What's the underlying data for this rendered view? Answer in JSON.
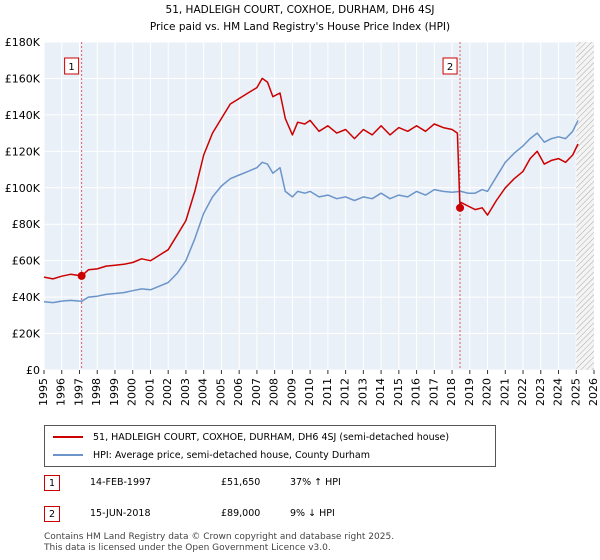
{
  "chart_data": {
    "type": "line",
    "title": "51, HADLEIGH COURT, COXHOE, DURHAM, DH6 4SJ",
    "subtitle": "Price paid vs. HM Land Registry's House Price Index (HPI)",
    "xlim": [
      1995,
      2026
    ],
    "ylim": [
      0,
      180000
    ],
    "x_ticks": [
      "1995",
      "1996",
      "1997",
      "1998",
      "1999",
      "2000",
      "2001",
      "2002",
      "2003",
      "2004",
      "2005",
      "2006",
      "2007",
      "2008",
      "2009",
      "2010",
      "2011",
      "2012",
      "2013",
      "2014",
      "2015",
      "2016",
      "2017",
      "2018",
      "2019",
      "2020",
      "2021",
      "2022",
      "2023",
      "2024",
      "2025",
      "2026"
    ],
    "y_ticks": [
      {
        "value": 0,
        "label": "£0"
      },
      {
        "value": 20000,
        "label": "£20K"
      },
      {
        "value": 40000,
        "label": "£40K"
      },
      {
        "value": 60000,
        "label": "£60K"
      },
      {
        "value": 80000,
        "label": "£80K"
      },
      {
        "value": 100000,
        "label": "£100K"
      },
      {
        "value": 120000,
        "label": "£120K"
      },
      {
        "value": 140000,
        "label": "£140K"
      },
      {
        "value": 160000,
        "label": "£160K"
      },
      {
        "value": 180000,
        "label": "£180K"
      }
    ],
    "grid": true,
    "forecast_from": 2025.0,
    "series": [
      {
        "name": "51, HADLEIGH COURT, COXHOE, DURHAM, DH6 4SJ (semi-detached house)",
        "color": "#cc0000",
        "x": [
          1995.0,
          1995.5,
          1996.0,
          1996.5,
          1997.12,
          1997.5,
          1998.0,
          1998.5,
          1999.0,
          1999.5,
          2000.0,
          2000.5,
          2001.0,
          2001.5,
          2002.0,
          2002.5,
          2003.0,
          2003.5,
          2004.0,
          2004.5,
          2005.0,
          2005.5,
          2006.0,
          2006.5,
          2007.0,
          2007.3,
          2007.6,
          2007.9,
          2008.3,
          2008.6,
          2009.0,
          2009.3,
          2009.7,
          2010.0,
          2010.5,
          2011.0,
          2011.5,
          2012.0,
          2012.5,
          2013.0,
          2013.5,
          2014.0,
          2014.5,
          2015.0,
          2015.5,
          2016.0,
          2016.5,
          2017.0,
          2017.5,
          2018.0,
          2018.3,
          2018.45,
          2018.5,
          2018.9,
          2019.3,
          2019.7,
          2020.0,
          2020.5,
          2021.0,
          2021.5,
          2022.0,
          2022.4,
          2022.8,
          2023.2,
          2023.6,
          2024.0,
          2024.4,
          2024.8,
          2025.1
        ],
        "y": [
          51000,
          50000,
          51500,
          52500,
          51650,
          55000,
          55500,
          57000,
          57500,
          58000,
          59000,
          61000,
          60000,
          63000,
          66000,
          74000,
          82000,
          98000,
          118000,
          130000,
          138000,
          146000,
          149000,
          152000,
          155000,
          160000,
          158000,
          150000,
          152000,
          138000,
          129000,
          136000,
          135000,
          137000,
          131000,
          134000,
          130000,
          132000,
          127000,
          132000,
          129000,
          134000,
          129000,
          133000,
          131000,
          134000,
          131000,
          135000,
          133000,
          132000,
          130000,
          89000,
          92000,
          90000,
          88000,
          89000,
          85000,
          93000,
          100000,
          105000,
          109000,
          116000,
          120000,
          113000,
          115000,
          116000,
          114000,
          118000,
          124000
        ]
      },
      {
        "name": "HPI: Average price, semi-detached house, County Durham",
        "color": "#6b95c9",
        "x": [
          1995.0,
          1995.5,
          1996.0,
          1996.5,
          1997.12,
          1997.5,
          1998.0,
          1998.5,
          1999.0,
          1999.5,
          2000.0,
          2000.5,
          2001.0,
          2001.5,
          2002.0,
          2002.5,
          2003.0,
          2003.5,
          2004.0,
          2004.5,
          2005.0,
          2005.5,
          2006.0,
          2006.5,
          2007.0,
          2007.3,
          2007.6,
          2007.9,
          2008.3,
          2008.6,
          2009.0,
          2009.3,
          2009.7,
          2010.0,
          2010.5,
          2011.0,
          2011.5,
          2012.0,
          2012.5,
          2013.0,
          2013.5,
          2014.0,
          2014.5,
          2015.0,
          2015.5,
          2016.0,
          2016.5,
          2017.0,
          2017.5,
          2018.0,
          2018.5,
          2018.9,
          2019.3,
          2019.7,
          2020.0,
          2020.5,
          2021.0,
          2021.5,
          2022.0,
          2022.4,
          2022.8,
          2023.2,
          2023.6,
          2024.0,
          2024.4,
          2024.8,
          2025.1
        ],
        "y": [
          37500,
          37000,
          37800,
          38200,
          37700,
          40000,
          40500,
          41500,
          42000,
          42500,
          43500,
          44500,
          44000,
          46000,
          48000,
          53000,
          60000,
          72000,
          86000,
          95000,
          101000,
          105000,
          107000,
          109000,
          111000,
          114000,
          113000,
          108000,
          111000,
          98000,
          95000,
          98000,
          97000,
          98000,
          95000,
          96000,
          94000,
          95000,
          93000,
          95000,
          94000,
          97000,
          94000,
          96000,
          95000,
          98000,
          96000,
          99000,
          98000,
          97500,
          98000,
          97000,
          97000,
          99000,
          98000,
          106000,
          114000,
          119000,
          123000,
          127000,
          130000,
          125000,
          127000,
          128000,
          127000,
          131000,
          137000
        ]
      }
    ],
    "annotations": [
      {
        "label": "1",
        "x": 1997.12,
        "y": 51650
      },
      {
        "label": "2",
        "x": 2018.45,
        "y": 89000
      }
    ]
  },
  "legend": {
    "property_label": "51, HADLEIGH COURT, COXHOE, DURHAM, DH6 4SJ (semi-detached house)",
    "hpi_label": "HPI: Average price, semi-detached house, County Durham"
  },
  "transactions": [
    {
      "num": "1",
      "date": "14-FEB-1997",
      "price": "£51,650",
      "hpi": "37% ↑ HPI"
    },
    {
      "num": "2",
      "date": "15-JUN-2018",
      "price": "£89,000",
      "hpi": "9% ↓ HPI"
    }
  ],
  "footer": {
    "line1": "Contains HM Land Registry data © Crown copyright and database right 2025.",
    "line2": "This data is licensed under the Open Government Licence v3.0."
  }
}
